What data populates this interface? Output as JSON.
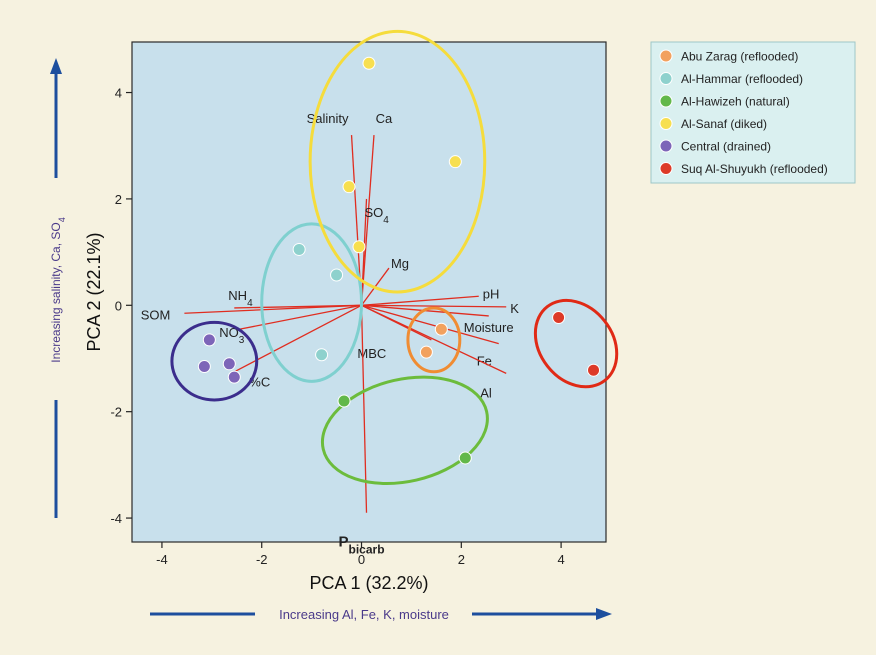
{
  "chart_data": {
    "type": "scatter",
    "xlabel": "PCA 1 (32.2%)",
    "ylabel": "PCA 2 (22.1%)",
    "x_annotation": "Increasing Al, Fe, K, moisture",
    "y_annotation": {
      "prefix": "Increasing salinity, Ca, SO",
      "subscript": "4"
    },
    "xlim": [
      -4.6,
      4.9
    ],
    "ylim": [
      -4.45,
      4.95
    ],
    "xticks": [
      -4,
      -2,
      0,
      2,
      4
    ],
    "yticks": [
      -4,
      -2,
      0,
      2,
      4
    ],
    "grid": false,
    "legend_position": "top-right",
    "series": [
      {
        "name": "Abu Zarag (reflooded)",
        "color": "#f2a15e",
        "points": [
          [
            1.6,
            -0.45
          ],
          [
            1.3,
            -0.88
          ]
        ],
        "ellipse": {
          "cx": 1.45,
          "cy": -0.65,
          "rx": 0.52,
          "ry": 0.6,
          "color": "#f08c32"
        }
      },
      {
        "name": "Al-Hammar (reflooded)",
        "color": "#8ed1cd",
        "points": [
          [
            -1.25,
            1.05
          ],
          [
            -0.5,
            0.57
          ],
          [
            -0.8,
            -0.93
          ]
        ],
        "ellipse": {
          "cx": -1.0,
          "cy": 0.05,
          "rx": 1.0,
          "ry": 1.48,
          "color": "#7fd0cf"
        }
      },
      {
        "name": "Al-Hawizeh (natural)",
        "color": "#62b84a",
        "points": [
          [
            -0.35,
            -1.8
          ],
          [
            2.08,
            -2.87
          ]
        ],
        "ellipse": {
          "cx": 0.87,
          "cy": -2.35,
          "rx": 1.68,
          "ry": 0.96,
          "angle": -13,
          "color": "#6cbc3c"
        }
      },
      {
        "name": "Al-Sanaf (diked)",
        "color": "#f7df50",
        "points": [
          [
            0.15,
            4.55
          ],
          [
            1.88,
            2.7
          ],
          [
            -0.25,
            2.23
          ],
          [
            -0.05,
            1.1
          ]
        ],
        "ellipse": {
          "cx": 0.72,
          "cy": 2.7,
          "rx": 1.75,
          "ry": 2.45,
          "color": "#f5dc3c"
        }
      },
      {
        "name": "Central (drained)",
        "color": "#7d65b8",
        "points": [
          [
            -3.05,
            -0.65
          ],
          [
            -2.65,
            -1.1
          ],
          [
            -3.15,
            -1.15
          ],
          [
            -2.55,
            -1.35
          ]
        ],
        "ellipse": {
          "cx": -2.95,
          "cy": -1.05,
          "rx": 0.85,
          "ry": 0.73,
          "color": "#3b2d8c"
        }
      },
      {
        "name": "Suq Al-Shuyukh (reflooded)",
        "color": "#dd3a28",
        "points": [
          [
            3.95,
            -0.23
          ],
          [
            4.65,
            -1.22
          ]
        ],
        "ellipse": {
          "cx": 4.3,
          "cy": -0.72,
          "rx": 0.73,
          "ry": 0.88,
          "angle": -38,
          "color": "#e02a16"
        }
      }
    ],
    "loadings": [
      {
        "label": "Salinity",
        "x": -0.2,
        "y": 3.2
      },
      {
        "label": "Ca",
        "x": 0.25,
        "y": 3.2
      },
      {
        "label": "SO",
        "sub": "4",
        "x": 0.1,
        "y": 2.0
      },
      {
        "label": "Mg",
        "x": 0.55,
        "y": 0.7
      },
      {
        "label": "pH",
        "x": 2.35,
        "y": 0.17
      },
      {
        "label": "K",
        "x": 2.9,
        "y": -0.03
      },
      {
        "label": "Moisture",
        "x": 2.55,
        "y": -0.2
      },
      {
        "label": "Fe",
        "x": 2.75,
        "y": -0.72
      },
      {
        "label": "Al",
        "x": 2.9,
        "y": -1.28
      },
      {
        "label": "MBC",
        "x": 1.4,
        "y": -0.65
      },
      {
        "label": "P",
        "sub": "bicarb",
        "x": 0.1,
        "y": -3.9
      },
      {
        "label": "SOM",
        "x": -3.55,
        "y": -0.15
      },
      {
        "label": "NH",
        "sub": "4",
        "x": -2.55,
        "y": -0.05
      },
      {
        "label": "NO",
        "sub": "3",
        "x": -2.45,
        "y": -0.45
      },
      {
        "label": "%C",
        "x": -2.65,
        "y": -1.3
      }
    ]
  }
}
